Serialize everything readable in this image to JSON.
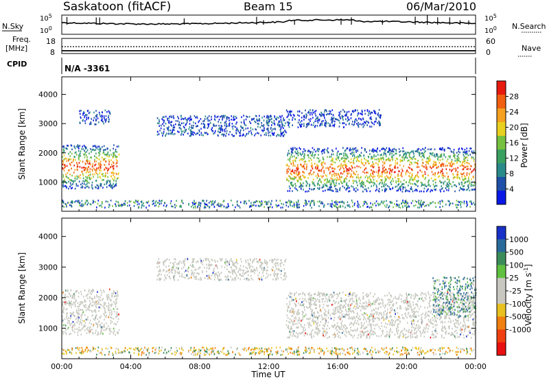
{
  "header": {
    "station": "Saskatoon (fitACF)",
    "beam": "Beam 15",
    "date": "06/Mar/2010"
  },
  "noise_panel": {
    "left_label": "N.Sky",
    "right_label": "N.Search",
    "left_ticks": [
      "10^5",
      "10^0"
    ],
    "right_ticks": [
      "10^5",
      "10^0"
    ]
  },
  "freq_panel": {
    "left_label_line1": "Freq.",
    "left_label_line2": "[MHz]",
    "left_ticks": [
      "18",
      "8"
    ],
    "right_label": "Nave",
    "right_ticks": [
      "60",
      "0"
    ]
  },
  "cpid_panel": {
    "label": "CPID",
    "value": "N/A -3361"
  },
  "colors": {
    "power_scale": [
      "#0a18e6",
      "#1f4fa8",
      "#2a8a8a",
      "#3aa060",
      "#77c040",
      "#e8d020",
      "#f5a020",
      "#f06010",
      "#e81a10"
    ],
    "velocity_scale": [
      "#1830c8",
      "#2a6a9a",
      "#3c8c5a",
      "#60c040",
      "#c8c8c0",
      "#c8c8c0",
      "#e8c020",
      "#f08010",
      "#f04010",
      "#e81010"
    ]
  },
  "chart_data": [
    {
      "type": "heatmap",
      "quantity": "Power",
      "ylabel": "Slant Range [km]",
      "yticks": [
        "1000",
        "2000",
        "3000",
        "4000"
      ],
      "ylim": [
        0,
        4600
      ],
      "xlim": [
        "00:00",
        "24:00"
      ],
      "colorbar_label": "Power [dB]",
      "colorbar_ticks": [
        "4",
        "8",
        "12",
        "16",
        "20",
        "24",
        "28"
      ],
      "colorbar_range": [
        0,
        32
      ],
      "regions": [
        {
          "t_start": 0.0,
          "t_end": 3.3,
          "r_low": 800,
          "r_high": 2300,
          "level": "high"
        },
        {
          "t_start": 1.0,
          "t_end": 2.8,
          "r_low": 3000,
          "r_high": 3500,
          "level": "low"
        },
        {
          "t_start": 5.5,
          "t_end": 13.0,
          "r_low": 2600,
          "r_high": 3300,
          "level": "low"
        },
        {
          "t_start": 13.0,
          "t_end": 24.0,
          "r_low": 700,
          "r_high": 2200,
          "level": "high"
        },
        {
          "t_start": 13.0,
          "t_end": 18.5,
          "r_low": 2900,
          "r_high": 3500,
          "level": "low"
        },
        {
          "t_start": 0.0,
          "t_end": 24.0,
          "r_low": 150,
          "r_high": 400,
          "level": "low"
        }
      ]
    },
    {
      "type": "heatmap",
      "quantity": "Velocity",
      "ylabel": "Slant Range [km]",
      "yticks": [
        "1000",
        "2000",
        "3000",
        "4000"
      ],
      "ylim": [
        0,
        4600
      ],
      "xlim": [
        "00:00",
        "24:00"
      ],
      "xticks": [
        "00:00",
        "04:00",
        "08:00",
        "12:00",
        "16:00",
        "20:00",
        "00:00"
      ],
      "xlabel": "Time UT",
      "colorbar_label": "Velocity [m s^-1]",
      "colorbar_ticks": [
        "1000",
        "500",
        "100",
        "25",
        "-25",
        "-100",
        "-500",
        "-1000"
      ],
      "regions": [
        {
          "t_start": 0.0,
          "t_end": 3.3,
          "r_low": 800,
          "r_high": 2300,
          "level": "near-zero"
        },
        {
          "t_start": 5.5,
          "t_end": 13.0,
          "r_low": 2600,
          "r_high": 3300,
          "level": "near-zero"
        },
        {
          "t_start": 13.0,
          "t_end": 24.0,
          "r_low": 700,
          "r_high": 2200,
          "level": "near-zero"
        },
        {
          "t_start": 21.5,
          "t_end": 24.0,
          "r_low": 1400,
          "r_high": 2700,
          "level": "positive"
        },
        {
          "t_start": 0.0,
          "t_end": 24.0,
          "r_low": 150,
          "r_high": 400,
          "level": "negative"
        }
      ]
    }
  ]
}
